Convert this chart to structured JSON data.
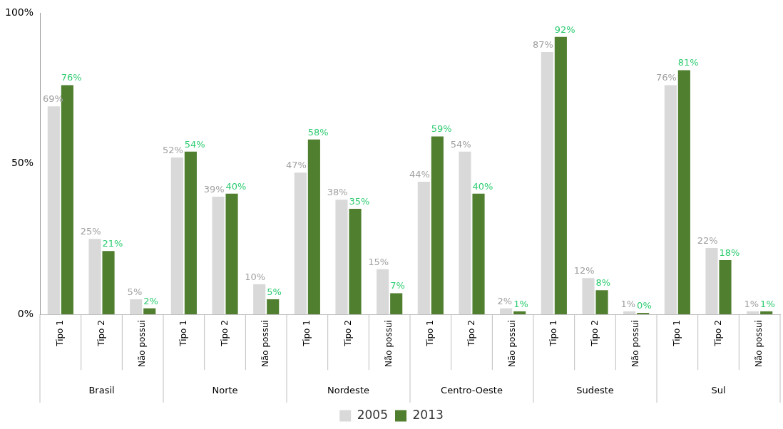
{
  "chart_data": {
    "type": "bar",
    "categories": [
      "Tipo 1",
      "Tipo 2",
      "Não possui",
      "Tipo 1",
      "Tipo 2",
      "Não possui",
      "Tipo 1",
      "Tipo 2",
      "Não possui",
      "Tipo 1",
      "Tipo 2",
      "Não possui",
      "Tipo 1",
      "Tipo 2",
      "Não possui",
      "Tipo 1",
      "Tipo 2",
      "Não possui"
    ],
    "series": [
      {
        "name": "2005",
        "color": "#d9d9d9",
        "values": [
          69,
          25,
          5,
          52,
          39,
          10,
          47,
          38,
          15,
          44,
          54,
          2,
          87,
          12,
          1,
          76,
          22,
          1
        ],
        "value_labels": [
          "69%",
          "25%",
          "5%",
          "52%",
          "39%",
          "10%",
          "47%",
          "38%",
          "15%",
          "44%",
          "54%",
          "2%",
          "87%",
          "12%",
          "1%",
          "76%",
          "22%",
          "1%"
        ]
      },
      {
        "name": "2013",
        "color": "#4f7f2f",
        "values": [
          76,
          21,
          2,
          54,
          40,
          5,
          58,
          35,
          7,
          59,
          40,
          1,
          92,
          8,
          0,
          81,
          18,
          1
        ],
        "value_labels": [
          "76%",
          "21%",
          "2%",
          "54%",
          "40%",
          "5%",
          "58%",
          "35%",
          "7%",
          "59%",
          "40%",
          "1%",
          "92%",
          "8%",
          "0%",
          "81%",
          "18%",
          "1%"
        ]
      }
    ],
    "annotations": [
      "Brasil",
      "Norte",
      "Nordeste",
      "Centro-Oeste",
      "Sudeste",
      "Sul"
    ],
    "ylim": [
      0,
      100
    ],
    "yticks": [
      {
        "value": 0,
        "label": "0%"
      },
      {
        "value": 50,
        "label": "50%"
      },
      {
        "value": 100,
        "label": "100%"
      }
    ],
    "grid": false,
    "legend": "bottom"
  }
}
